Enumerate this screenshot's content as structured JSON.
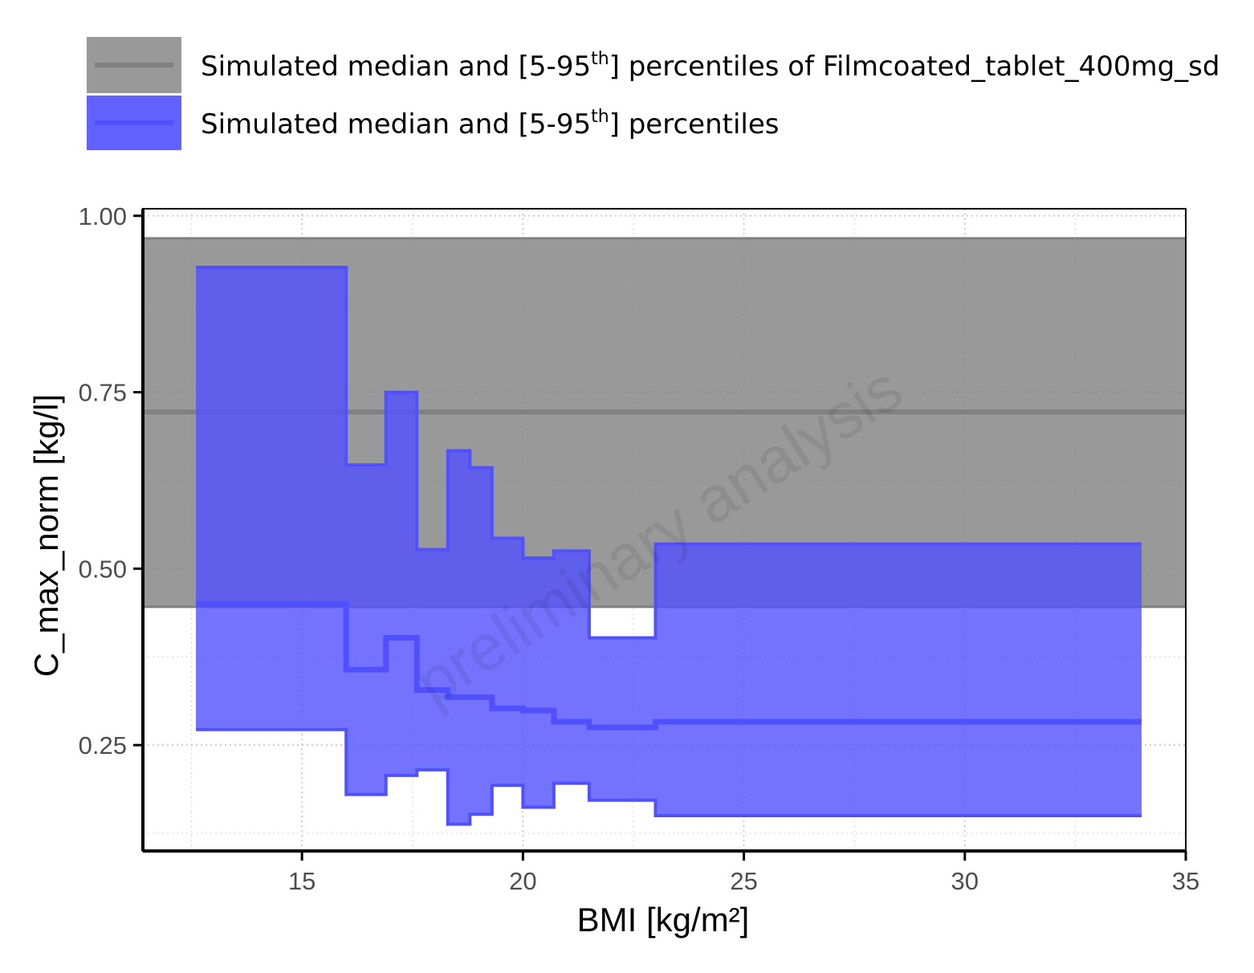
{
  "chart_data": {
    "type": "area",
    "xlabel": "BMI [kg/m²]",
    "ylabel": "C_max_norm [kg/l]",
    "xlim": [
      11.4,
      35
    ],
    "ylim": [
      0.1,
      1.01
    ],
    "x_ticks": [
      "15",
      "20",
      "25",
      "30",
      "35"
    ],
    "y_ticks": [
      "0.25",
      "0.50",
      "0.75",
      "1.00"
    ],
    "grid": true,
    "watermark": "preliminary analysis",
    "legend": {
      "placement": "top",
      "entries": [
        {
          "prefix": "Simulated median and [5-95",
          "sup": "th",
          "suffix": "] percentiles of Filmcoated_tablet_400mg_sd",
          "color": "#808080"
        },
        {
          "prefix": "Simulated median and [5-95",
          "sup": "th",
          "suffix": "] percentiles",
          "color": "#5050ff"
        }
      ]
    },
    "reference": {
      "name": "Filmcoated_tablet_400mg_sd",
      "median": 0.722,
      "p5": 0.446,
      "p95": 0.968,
      "color": "#808080"
    },
    "series": [
      {
        "color": "#5050ff",
        "x_breaks": [
          12.6,
          16.0,
          16.9,
          17.6,
          18.3,
          18.8,
          19.3,
          20.0,
          20.7,
          21.5,
          23.0,
          34.0
        ],
        "p95": [
          0.927,
          0.647,
          0.75,
          0.527,
          0.667,
          0.643,
          0.543,
          0.515,
          0.525,
          0.402,
          0.535
        ],
        "median": [
          0.45,
          0.357,
          0.402,
          0.328,
          0.318,
          0.318,
          0.302,
          0.299,
          0.283,
          0.275,
          0.283
        ],
        "p5": [
          0.272,
          0.18,
          0.207,
          0.215,
          0.138,
          0.152,
          0.193,
          0.162,
          0.196,
          0.172,
          0.15
        ]
      }
    ]
  }
}
